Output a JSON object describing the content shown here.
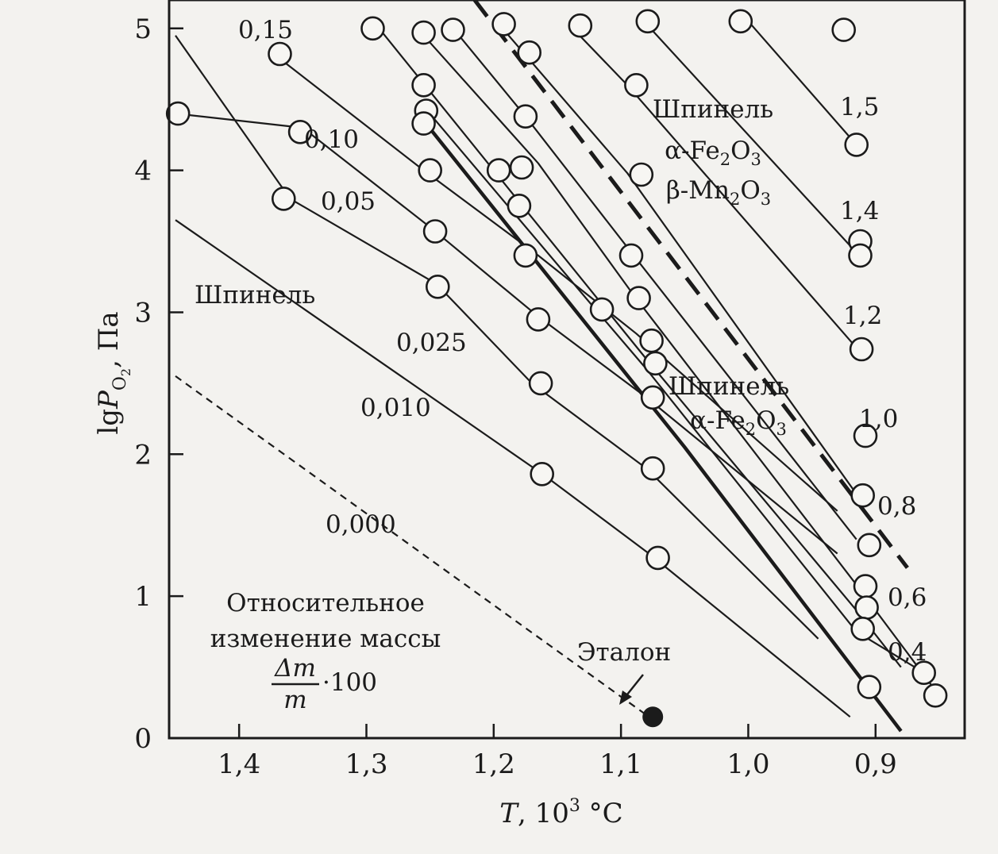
{
  "chart_data": {
    "type": "scatter",
    "xlabel": "T, 10³ °C",
    "ylabel": "lgPO₂, Па",
    "xlim": [
      1.455,
      0.83
    ],
    "ylim": [
      0,
      5.2
    ],
    "x_reversed": true,
    "x_ticks": [
      "1,4",
      "1,3",
      "1,2",
      "1,1",
      "1,0",
      "0,9"
    ],
    "x_tick_values": [
      1.4,
      1.3,
      1.2,
      1.1,
      1.0,
      0.9
    ],
    "y_ticks": [
      "0",
      "1",
      "2",
      "3",
      "4",
      "5"
    ],
    "y_tick_values": [
      0,
      1,
      2,
      3,
      4,
      5
    ],
    "grid": false,
    "legend": "none",
    "series": [
      {
        "name": "0,000",
        "style": "dashed",
        "values": [
          [
            1.45,
            2.55
          ],
          [
            1.078,
            0.15
          ]
        ]
      },
      {
        "name": "0,010",
        "style": "solid",
        "values": [
          [
            1.45,
            3.65
          ],
          [
            1.16,
            1.85
          ],
          [
            1.078,
            1.3
          ],
          [
            0.92,
            0.15
          ]
        ]
      },
      {
        "name": "0,025",
        "style": "solid",
        "values": [
          [
            1.45,
            4.95
          ],
          [
            1.36,
            3.8
          ],
          [
            1.245,
            3.2
          ],
          [
            1.17,
            2.5
          ],
          [
            1.08,
            1.9
          ],
          [
            0.945,
            0.7
          ]
        ]
      },
      {
        "name": "0,05",
        "style": "solid",
        "values": [
          [
            1.45,
            4.4
          ],
          [
            1.35,
            4.3
          ],
          [
            1.25,
            3.6
          ],
          [
            1.165,
            2.97
          ],
          [
            1.08,
            2.4
          ],
          [
            0.93,
            1.3
          ]
        ]
      },
      {
        "name": "0,10",
        "style": "solid",
        "values": [
          [
            1.37,
            4.8
          ],
          [
            1.255,
            4.0
          ],
          [
            1.165,
            3.4
          ],
          [
            1.088,
            2.85
          ],
          [
            0.93,
            1.6
          ]
        ]
      },
      {
        "name": "0,15",
        "style": "solid",
        "values": [
          [
            1.29,
            5.0
          ],
          [
            1.2,
            4.0
          ],
          [
            1.08,
            2.67
          ],
          [
            0.915,
            0.9
          ],
          [
            0.88,
            0.5
          ]
        ]
      },
      {
        "name": "0,4",
        "style": "solid",
        "values": [
          [
            1.255,
            4.45
          ],
          [
            1.12,
            3.02
          ],
          [
            1.08,
            2.6
          ],
          [
            0.915,
            0.75
          ],
          [
            0.86,
            0.45
          ]
        ]
      },
      {
        "name": "0,6",
        "style": "solid",
        "values": [
          [
            1.255,
            4.95
          ],
          [
            1.165,
            4.05
          ],
          [
            1.09,
            3.12
          ],
          [
            0.915,
            1.08
          ],
          [
            0.85,
            0.3
          ]
        ]
      },
      {
        "name": "0,8",
        "style": "solid",
        "values": [
          [
            1.23,
            4.98
          ],
          [
            1.175,
            4.38
          ],
          [
            1.09,
            3.4
          ],
          [
            0.915,
            1.4
          ]
        ]
      },
      {
        "name": "1,0",
        "style": "solid",
        "values": [
          [
            1.195,
            5.02
          ],
          [
            1.095,
            3.98
          ],
          [
            0.915,
            1.72
          ]
        ]
      },
      {
        "name": "1,2",
        "style": "solid",
        "values": [
          [
            1.14,
            5.02
          ],
          [
            1.095,
            4.6
          ],
          [
            0.915,
            2.75
          ]
        ]
      },
      {
        "name": "1,4",
        "style": "solid",
        "values": [
          [
            1.082,
            5.05
          ],
          [
            0.915,
            3.42
          ]
        ]
      },
      {
        "name": "1,5",
        "style": "solid",
        "values": [
          [
            1.0,
            5.05
          ],
          [
            0.915,
            4.18
          ]
        ]
      },
      {
        "name": "boundary α-Fe2O3",
        "style": "thick-solid",
        "values": [
          [
            1.255,
            4.35
          ],
          [
            1.05,
            2.05
          ],
          [
            0.88,
            0.05
          ]
        ]
      },
      {
        "name": "boundary β-Mn2O3",
        "style": "thick-dashed",
        "values": [
          [
            1.215,
            5.2
          ],
          [
            0.875,
            1.2
          ]
        ]
      }
    ],
    "markers": [
      [
        1.448,
        4.4
      ],
      [
        1.368,
        4.82
      ],
      [
        1.352,
        4.27
      ],
      [
        1.365,
        3.8
      ],
      [
        1.295,
        5.0
      ],
      [
        1.255,
        4.97
      ],
      [
        1.232,
        4.99
      ],
      [
        1.255,
        4.6
      ],
      [
        1.253,
        4.42
      ],
      [
        1.255,
        4.33
      ],
      [
        1.25,
        4.0
      ],
      [
        1.246,
        3.57
      ],
      [
        1.244,
        3.18
      ],
      [
        1.196,
        4.0
      ],
      [
        1.18,
        3.75
      ],
      [
        1.175,
        3.4
      ],
      [
        1.178,
        4.02
      ],
      [
        1.175,
        4.38
      ],
      [
        1.172,
        4.83
      ],
      [
        1.192,
        5.03
      ],
      [
        1.165,
        2.95
      ],
      [
        1.163,
        2.5
      ],
      [
        1.162,
        1.86
      ],
      [
        1.132,
        5.02
      ],
      [
        1.115,
        3.02
      ],
      [
        1.088,
        4.6
      ],
      [
        1.079,
        5.05
      ],
      [
        1.084,
        3.97
      ],
      [
        1.092,
        3.4
      ],
      [
        1.086,
        3.1
      ],
      [
        1.076,
        2.8
      ],
      [
        1.073,
        2.64
      ],
      [
        1.075,
        2.4
      ],
      [
        1.075,
        1.9
      ],
      [
        1.071,
        1.27
      ],
      [
        1.006,
        5.05
      ],
      [
        0.925,
        4.99
      ],
      [
        0.915,
        4.18
      ],
      [
        0.912,
        3.5
      ],
      [
        0.912,
        3.4
      ],
      [
        0.911,
        2.74
      ],
      [
        0.908,
        2.13
      ],
      [
        0.91,
        1.71
      ],
      [
        0.905,
        1.36
      ],
      [
        0.908,
        1.07
      ],
      [
        0.907,
        0.92
      ],
      [
        0.91,
        0.77
      ],
      [
        0.905,
        0.36
      ],
      [
        0.862,
        0.46
      ],
      [
        0.853,
        0.3
      ]
    ],
    "reference_point": {
      "label": "Эталон",
      "x": 1.075,
      "y": 0.15
    },
    "curve_labels": [
      "0,15",
      "0,10",
      "0,05",
      "0,025",
      "0,010",
      "0,000",
      "1,5",
      "1,4",
      "1,2",
      "1,0",
      "0,8",
      "0,6",
      "0,4"
    ],
    "region_labels": {
      "spinel": "Шпинель",
      "upper_region": [
        "Шпинель",
        "α-Fe₂O₃",
        "β-Mn₂O₃"
      ],
      "middle_region": [
        "Шпинель",
        "α-Fe₂O₃"
      ]
    },
    "annotation_lines": [
      "Относительное",
      "изменение массы"
    ],
    "annotation_formula": {
      "numerator": "Δm",
      "denominator": "m",
      "multiplier": "·100"
    }
  }
}
